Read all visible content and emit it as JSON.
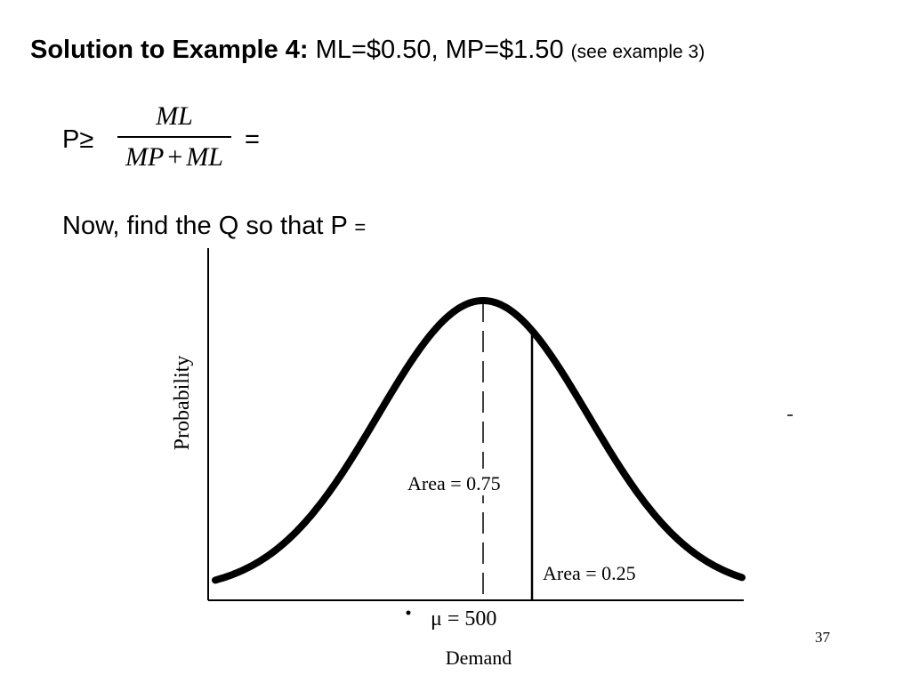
{
  "slide": {
    "title_bold": "Solution to Example 4:",
    "title_values": "ML=$0.50, MP=$1.50",
    "title_note": "(see example 3)",
    "formula": {
      "lhs": "P≥",
      "numerator": "ML",
      "denominator_left": "MP",
      "denominator_op": "+",
      "denominator_right": "ML",
      "rhs": "="
    },
    "instruction": "Now, find the Q so that P",
    "instruction_eq": "=",
    "page_number": "37"
  },
  "diagram": {
    "y_axis_label": "Probability",
    "x_axis_label": "Demand",
    "mean_label": "μ = 500",
    "area_left_label": "Area = 0.75",
    "area_right_label": "Area = 0.25",
    "mean_value": 500,
    "area_left": 0.75,
    "area_right": 0.25
  }
}
